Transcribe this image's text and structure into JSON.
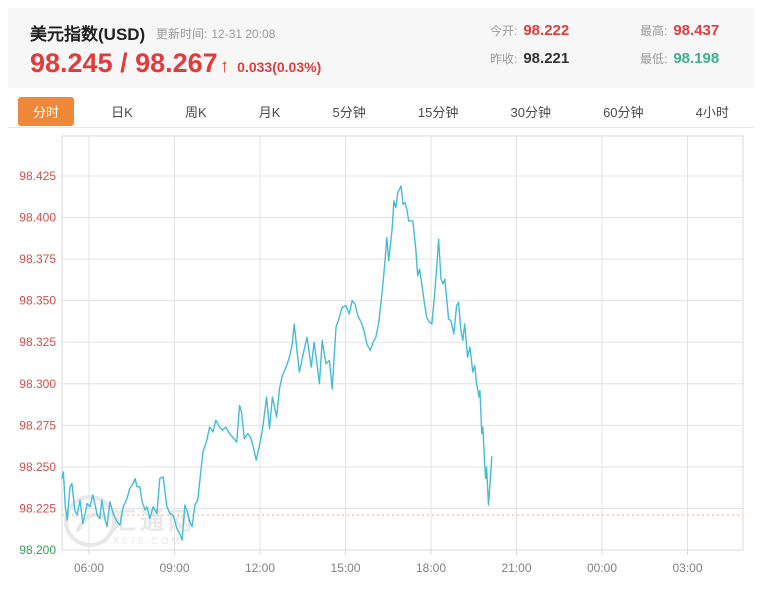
{
  "header": {
    "title": "美元指数(USD)",
    "update_label": "更新时间:",
    "update_time": "12-31 20:08",
    "bid_ask": "98.245 / 98.267",
    "arrow": "↑",
    "change": "0.033(0.03%)",
    "stats": [
      {
        "id": "open",
        "label": "今开:",
        "value": "98.222",
        "color": "red"
      },
      {
        "id": "high",
        "label": "最高:",
        "value": "98.437",
        "color": "red"
      },
      {
        "id": "prev-close",
        "label": "昨收:",
        "value": "98.221",
        "color": "dark"
      },
      {
        "id": "low",
        "label": "最低:",
        "value": "98.198",
        "color": "green"
      }
    ]
  },
  "tabs": [
    {
      "id": "fenshi",
      "label": "分时",
      "active": true
    },
    {
      "id": "day-k",
      "label": "日K",
      "active": false
    },
    {
      "id": "week-k",
      "label": "周K",
      "active": false
    },
    {
      "id": "month-k",
      "label": "月K",
      "active": false
    },
    {
      "id": "5min",
      "label": "5分钟",
      "active": false
    },
    {
      "id": "15min",
      "label": "15分钟",
      "active": false
    },
    {
      "id": "30min",
      "label": "30分钟",
      "active": false
    },
    {
      "id": "60min",
      "label": "60分钟",
      "active": false
    },
    {
      "id": "4hour",
      "label": "4小时",
      "active": false
    }
  ],
  "watermark": {
    "cn": "汇通网",
    "en": "FX678.COM"
  },
  "colors": {
    "price_red": "#e23b3b",
    "stat_green": "#3cb08e",
    "tab_active_bg": "#f0883a",
    "line": "#45bcd4",
    "grid": "#e3e3e3",
    "plot_border": "#d9d9d9",
    "axis_label_red": "#cc4f4b",
    "axis_label_green": "#3aa05a",
    "x_label": "#808080",
    "prev_close_dotted": "#ecc89b",
    "watermark": "#e8e8e8"
  },
  "chart_data": {
    "type": "line",
    "title": "美元指数(USD) 分时走势",
    "x_ticks": [
      "06:00",
      "09:00",
      "12:00",
      "15:00",
      "18:00",
      "21:00",
      "00:00",
      "03:00"
    ],
    "y_ticks": [
      98.2,
      98.225,
      98.25,
      98.275,
      98.3,
      98.325,
      98.35,
      98.375,
      98.4,
      98.425
    ],
    "ylim": [
      98.198,
      98.449
    ],
    "x_range_minutes": [
      303,
      1733
    ],
    "prev_close": 98.221,
    "grid": true,
    "legend_position": "none",
    "series": [
      {
        "name": "美元指数",
        "points": [
          [
            "05:03",
            98.243
          ],
          [
            "05:06",
            98.247
          ],
          [
            "05:10",
            98.226
          ],
          [
            "05:14",
            98.218
          ],
          [
            "05:20",
            98.238
          ],
          [
            "05:24",
            98.24
          ],
          [
            "05:30",
            98.224
          ],
          [
            "05:35",
            98.221
          ],
          [
            "05:41",
            98.23
          ],
          [
            "05:47",
            98.216
          ],
          [
            "05:52",
            98.222
          ],
          [
            "05:56",
            98.228
          ],
          [
            "06:02",
            98.226
          ],
          [
            "06:08",
            98.233
          ],
          [
            "06:13",
            98.227
          ],
          [
            "06:17",
            98.221
          ],
          [
            "06:23",
            98.219
          ],
          [
            "06:27",
            98.23
          ],
          [
            "06:34",
            98.218
          ],
          [
            "06:38",
            98.214
          ],
          [
            "06:44",
            98.229
          ],
          [
            "06:51",
            98.222
          ],
          [
            "06:59",
            98.217
          ],
          [
            "07:05",
            98.215
          ],
          [
            "07:12",
            98.226
          ],
          [
            "07:20",
            98.231
          ],
          [
            "07:26",
            98.237
          ],
          [
            "07:33",
            98.24
          ],
          [
            "07:37",
            98.243
          ],
          [
            "07:41",
            98.238
          ],
          [
            "07:47",
            98.238
          ],
          [
            "07:52",
            98.229
          ],
          [
            "07:58",
            98.224
          ],
          [
            "08:02",
            98.226
          ],
          [
            "08:08",
            98.219
          ],
          [
            "08:15",
            98.226
          ],
          [
            "08:23",
            98.222
          ],
          [
            "08:29",
            98.243
          ],
          [
            "08:36",
            98.244
          ],
          [
            "08:44",
            98.226
          ],
          [
            "08:50",
            98.222
          ],
          [
            "08:57",
            98.221
          ],
          [
            "09:05",
            98.213
          ],
          [
            "09:11",
            98.21
          ],
          [
            "09:16",
            98.206
          ],
          [
            "09:22",
            98.227
          ],
          [
            "09:26",
            98.224
          ],
          [
            "09:32",
            98.217
          ],
          [
            "09:37",
            98.214
          ],
          [
            "09:43",
            98.227
          ],
          [
            "09:49",
            98.23
          ],
          [
            "09:53",
            98.241
          ],
          [
            "10:00",
            98.259
          ],
          [
            "10:08",
            98.266
          ],
          [
            "10:14",
            98.274
          ],
          [
            "10:21",
            98.271
          ],
          [
            "10:27",
            98.278
          ],
          [
            "10:35",
            98.274
          ],
          [
            "10:41",
            98.272
          ],
          [
            "10:48",
            98.274
          ],
          [
            "10:56",
            98.27
          ],
          [
            "11:02",
            98.268
          ],
          [
            "11:11",
            98.265
          ],
          [
            "11:17",
            98.287
          ],
          [
            "11:21",
            98.283
          ],
          [
            "11:27",
            98.267
          ],
          [
            "11:34",
            98.27
          ],
          [
            "11:40",
            98.268
          ],
          [
            "11:46",
            98.262
          ],
          [
            "11:52",
            98.254
          ],
          [
            "11:59",
            98.263
          ],
          [
            "12:05",
            98.272
          ],
          [
            "12:14",
            98.292
          ],
          [
            "12:20",
            98.273
          ],
          [
            "12:26",
            98.292
          ],
          [
            "12:35",
            98.28
          ],
          [
            "12:41",
            98.297
          ],
          [
            "12:47",
            98.305
          ],
          [
            "12:55",
            98.31
          ],
          [
            "13:02",
            98.316
          ],
          [
            "13:08",
            98.324
          ],
          [
            "13:12",
            98.336
          ],
          [
            "13:18",
            98.32
          ],
          [
            "13:23",
            98.307
          ],
          [
            "13:31",
            98.318
          ],
          [
            "13:39",
            98.328
          ],
          [
            "13:48",
            98.31
          ],
          [
            "13:54",
            98.325
          ],
          [
            "14:00",
            98.312
          ],
          [
            "14:05",
            98.3
          ],
          [
            "14:11",
            98.326
          ],
          [
            "14:19",
            98.312
          ],
          [
            "14:26",
            98.314
          ],
          [
            "14:32",
            98.297
          ],
          [
            "14:40",
            98.334
          ],
          [
            "14:47",
            98.34
          ],
          [
            "14:53",
            98.346
          ],
          [
            "15:01",
            98.347
          ],
          [
            "15:08",
            98.342
          ],
          [
            "15:14",
            98.35
          ],
          [
            "15:20",
            98.348
          ],
          [
            "15:26",
            98.341
          ],
          [
            "15:33",
            98.337
          ],
          [
            "15:39",
            98.332
          ],
          [
            "15:45",
            98.324
          ],
          [
            "15:52",
            98.32
          ],
          [
            "15:58",
            98.325
          ],
          [
            "16:04",
            98.328
          ],
          [
            "16:10",
            98.337
          ],
          [
            "16:17",
            98.355
          ],
          [
            "16:23",
            98.373
          ],
          [
            "16:27",
            98.388
          ],
          [
            "16:31",
            98.374
          ],
          [
            "16:38",
            98.393
          ],
          [
            "16:42",
            98.41
          ],
          [
            "16:46",
            98.406
          ],
          [
            "16:50",
            98.415
          ],
          [
            "16:57",
            98.419
          ],
          [
            "17:01",
            98.408
          ],
          [
            "17:05",
            98.409
          ],
          [
            "17:09",
            98.405
          ],
          [
            "17:13",
            98.398
          ],
          [
            "17:22",
            98.398
          ],
          [
            "17:28",
            98.381
          ],
          [
            "17:32",
            98.365
          ],
          [
            "17:36",
            98.369
          ],
          [
            "17:41",
            98.359
          ],
          [
            "17:47",
            98.347
          ],
          [
            "17:51",
            98.34
          ],
          [
            "17:57",
            98.337
          ],
          [
            "18:02",
            98.336
          ],
          [
            "18:08",
            98.355
          ],
          [
            "18:12",
            98.37
          ],
          [
            "18:16",
            98.387
          ],
          [
            "18:21",
            98.363
          ],
          [
            "18:25",
            98.36
          ],
          [
            "18:29",
            98.363
          ],
          [
            "18:37",
            98.339
          ],
          [
            "18:42",
            98.338
          ],
          [
            "18:48",
            98.33
          ],
          [
            "18:54",
            98.347
          ],
          [
            "18:58",
            98.349
          ],
          [
            "19:03",
            98.332
          ],
          [
            "19:07",
            98.326
          ],
          [
            "19:11",
            98.336
          ],
          [
            "19:17",
            98.316
          ],
          [
            "19:22",
            98.322
          ],
          [
            "19:28",
            98.307
          ],
          [
            "19:32",
            98.311
          ],
          [
            "19:36",
            98.3
          ],
          [
            "19:41",
            98.292
          ],
          [
            "19:43",
            98.296
          ],
          [
            "19:47",
            98.27
          ],
          [
            "19:49",
            98.274
          ],
          [
            "19:53",
            98.252
          ],
          [
            "19:55",
            98.243
          ],
          [
            "19:57",
            98.25
          ],
          [
            "20:01",
            98.227
          ],
          [
            "20:08",
            98.256
          ]
        ]
      }
    ]
  }
}
